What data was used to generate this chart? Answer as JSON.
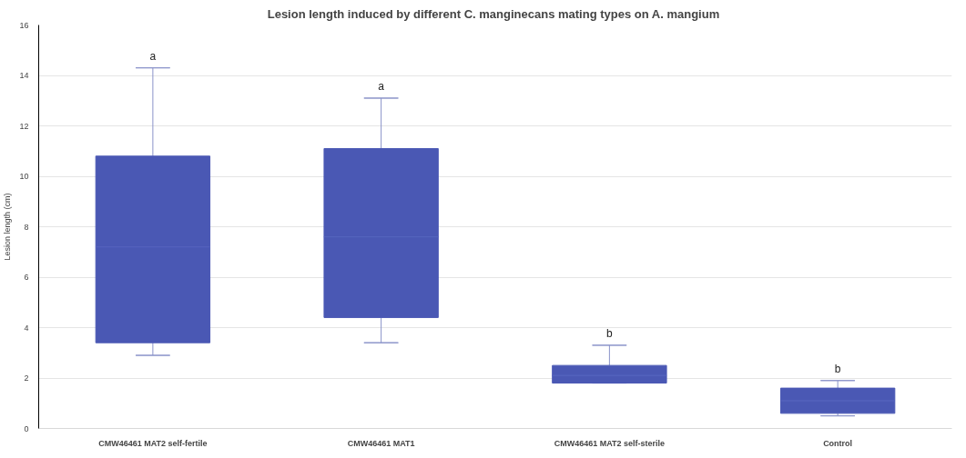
{
  "chart_data": {
    "type": "box",
    "title": "Lesion length induced by different C.  manginecans mating types on A. mangium",
    "ylabel": "Lesion length (cm)",
    "categories": [
      "CMW46461 MAT2 self-fertile",
      "CMW46461 MAT1",
      "CMW46461 MAT2 self-sterile",
      "Control"
    ],
    "series": [
      {
        "color": "#4a58b4",
        "boxes": [
          {
            "low": 2.9,
            "q1": 3.4,
            "median": 7.2,
            "q3": 10.8,
            "high": 14.3
          },
          {
            "low": 3.4,
            "q1": 4.4,
            "median": 7.6,
            "q3": 11.1,
            "high": 13.1
          },
          {
            "low": 1.8,
            "q1": 1.8,
            "median": 2.1,
            "q3": 2.5,
            "high": 3.3
          },
          {
            "low": 0.5,
            "q1": 0.6,
            "median": 1.1,
            "q3": 1.6,
            "high": 1.9
          }
        ]
      }
    ],
    "ylim": [
      0,
      16
    ],
    "yticks": [
      0,
      2,
      4,
      6,
      8,
      10,
      12,
      14,
      16
    ],
    "grid": "y",
    "annotations": [
      {
        "text": "a",
        "x": "CMW46461 MAT2 self-fertile",
        "y": 14.3
      },
      {
        "text": "a",
        "x": "CMW46461 MAT1",
        "y": 13.1
      },
      {
        "text": "b",
        "x": "CMW46461 MAT2 self-sterile",
        "y": 3.3
      },
      {
        "text": "b",
        "x": "Control",
        "y": 1.9
      }
    ]
  }
}
